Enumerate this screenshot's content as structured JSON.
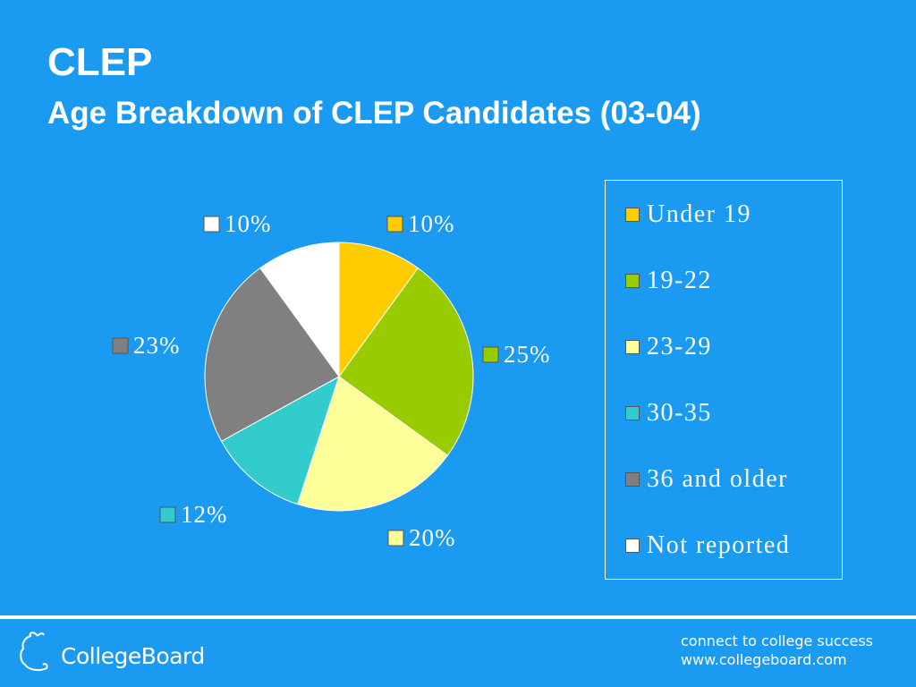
{
  "header": {
    "title": "CLEP",
    "subtitle": "Age Breakdown of CLEP Candidates (03-04)"
  },
  "chart_data": {
    "type": "pie",
    "title": "",
    "legend_position": "right",
    "slices": [
      {
        "name": "Under 19",
        "value": 10,
        "label": "10%",
        "color": "#ffcc00"
      },
      {
        "name": "19-22",
        "value": 25,
        "label": "25%",
        "color": "#99cc00"
      },
      {
        "name": "23-29",
        "value": 20,
        "label": "20%",
        "color": "#ffff99"
      },
      {
        "name": "30-35",
        "value": 12,
        "label": "12%",
        "color": "#33cccc"
      },
      {
        "name": "36 and older",
        "value": 23,
        "label": "23%",
        "color": "#808080"
      },
      {
        "name": "Not reported",
        "value": 10,
        "label": "10%",
        "color": "#ffffff"
      }
    ]
  },
  "footer": {
    "logo_text": "CollegeBoard",
    "tagline_line1": "connect to college success",
    "tagline_line2": "www.collegeboard.com"
  },
  "colors": {
    "background": "#1a9af0",
    "text": "#ffffff"
  }
}
